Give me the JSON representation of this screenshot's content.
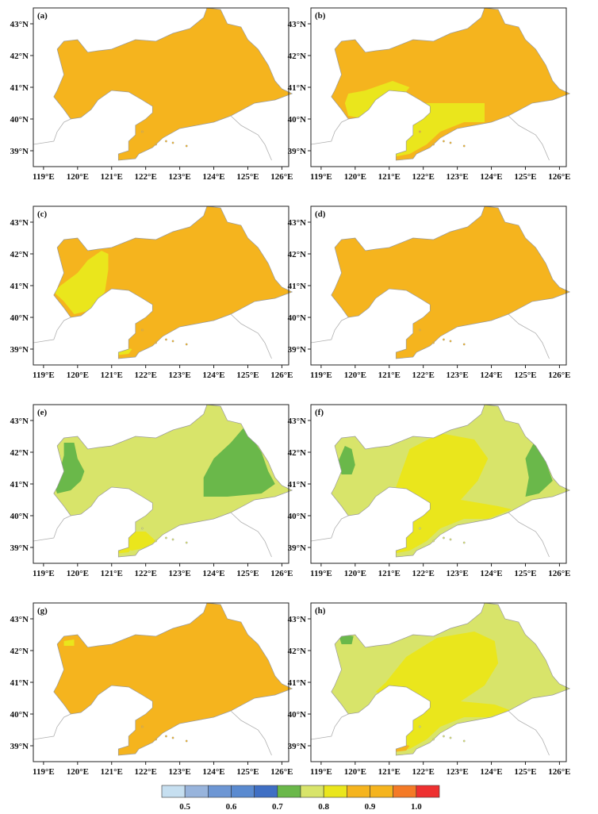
{
  "panels": [
    {
      "id": "a",
      "label": "(a)",
      "base": "#f5b41e",
      "regions": []
    },
    {
      "id": "b",
      "label": "(b)",
      "base": "#f5b41e",
      "regions": [
        {
          "color": "#eae61c",
          "pts": [
            [
              120.3,
              40.9
            ],
            [
              121.1,
              41.2
            ],
            [
              121.6,
              41.0
            ],
            [
              121.3,
              40.6
            ],
            [
              120.8,
              40.4
            ],
            [
              120.3,
              40.0
            ],
            [
              119.8,
              40.1
            ],
            [
              119.7,
              40.5
            ],
            [
              119.8,
              40.8
            ]
          ]
        },
        {
          "color": "#eae61c",
          "pts": [
            [
              121.3,
              40.5
            ],
            [
              122.0,
              40.5
            ],
            [
              123.8,
              40.5
            ],
            [
              123.8,
              39.9
            ],
            [
              123.2,
              39.9
            ],
            [
              122.5,
              39.6
            ],
            [
              122.1,
              39.2
            ],
            [
              121.6,
              38.9
            ],
            [
              121.1,
              38.8
            ],
            [
              121.3,
              39.2
            ],
            [
              121.6,
              39.6
            ],
            [
              121.9,
              40.1
            ],
            [
              121.6,
              40.3
            ]
          ]
        }
      ]
    },
    {
      "id": "c",
      "label": "(c)",
      "base": "#f5b41e",
      "regions": [
        {
          "color": "#eae61c",
          "pts": [
            [
              120.3,
              41.8
            ],
            [
              120.7,
              42.1
            ],
            [
              120.9,
              42.0
            ],
            [
              120.9,
              41.5
            ],
            [
              120.8,
              40.8
            ],
            [
              120.6,
              40.5
            ],
            [
              120.3,
              40.2
            ],
            [
              119.9,
              40.1
            ],
            [
              119.6,
              40.5
            ],
            [
              119.3,
              40.8
            ],
            [
              119.5,
              41.0
            ],
            [
              120.0,
              41.4
            ]
          ]
        },
        {
          "color": "#eae61c",
          "pts": [
            [
              121.1,
              38.8
            ],
            [
              121.5,
              38.85
            ],
            [
              121.6,
              39.0
            ],
            [
              121.2,
              39.1
            ]
          ]
        }
      ]
    },
    {
      "id": "d",
      "label": "(d)",
      "base": "#f5b41e",
      "regions": []
    },
    {
      "id": "e",
      "label": "(e)",
      "base": "#d8e46a",
      "regions": [
        {
          "color": "#6ab84a",
          "pts": [
            [
              119.6,
              42.3
            ],
            [
              119.9,
              42.3
            ],
            [
              120.0,
              41.8
            ],
            [
              120.2,
              41.4
            ],
            [
              120.1,
              41.1
            ],
            [
              119.8,
              40.8
            ],
            [
              119.4,
              40.7
            ],
            [
              119.3,
              41.0
            ],
            [
              119.5,
              41.5
            ],
            [
              119.6,
              41.9
            ]
          ]
        },
        {
          "color": "#6ab84a",
          "pts": [
            [
              124.9,
              42.8
            ],
            [
              125.4,
              42.0
            ],
            [
              125.6,
              41.4
            ],
            [
              125.8,
              41.0
            ],
            [
              125.4,
              40.7
            ],
            [
              124.4,
              40.6
            ],
            [
              123.7,
              40.6
            ],
            [
              123.7,
              41.2
            ],
            [
              124.0,
              41.8
            ],
            [
              124.5,
              42.3
            ]
          ]
        },
        {
          "color": "#eae61c",
          "pts": [
            [
              121.3,
              39.5
            ],
            [
              122.0,
              39.5
            ],
            [
              122.3,
              39.2
            ],
            [
              122.0,
              39.0
            ],
            [
              121.6,
              38.9
            ],
            [
              121.2,
              39.0
            ],
            [
              121.2,
              39.3
            ]
          ]
        },
        {
          "color": "#eae61c",
          "pts": [
            [
              121.1,
              38.8
            ],
            [
              121.5,
              38.85
            ],
            [
              121.6,
              39.0
            ],
            [
              121.2,
              39.1
            ]
          ]
        }
      ]
    },
    {
      "id": "f",
      "label": "(f)",
      "base": "#d8e46a",
      "regions": [
        {
          "color": "#eae61c",
          "pts": [
            [
              121.6,
              42.1
            ],
            [
              122.5,
              42.6
            ],
            [
              123.5,
              42.4
            ],
            [
              123.9,
              41.8
            ],
            [
              123.6,
              41.1
            ],
            [
              123.1,
              40.5
            ],
            [
              124.2,
              40.3
            ],
            [
              124.6,
              40.2
            ],
            [
              123.9,
              39.9
            ],
            [
              123.2,
              39.9
            ],
            [
              122.5,
              39.6
            ],
            [
              122.1,
              39.2
            ],
            [
              121.6,
              38.9
            ],
            [
              121.1,
              38.8
            ],
            [
              121.3,
              39.2
            ],
            [
              121.6,
              39.6
            ],
            [
              121.9,
              40.1
            ],
            [
              121.6,
              40.3
            ],
            [
              121.1,
              40.6
            ],
            [
              121.3,
              41.2
            ]
          ]
        },
        {
          "color": "#6ab84a",
          "pts": [
            [
              119.7,
              42.2
            ],
            [
              119.9,
              42.1
            ],
            [
              120.0,
              41.6
            ],
            [
              119.9,
              41.3
            ],
            [
              119.6,
              41.3
            ],
            [
              119.5,
              41.7
            ]
          ]
        },
        {
          "color": "#6ab84a",
          "pts": [
            [
              125.3,
              42.4
            ],
            [
              125.6,
              41.7
            ],
            [
              125.8,
              41.1
            ],
            [
              125.4,
              40.7
            ],
            [
              125.0,
              40.6
            ],
            [
              125.1,
              41.2
            ],
            [
              125.0,
              41.8
            ]
          ]
        }
      ]
    },
    {
      "id": "g",
      "label": "(g)",
      "base": "#f5b41e",
      "regions": [
        {
          "color": "#eae61c",
          "pts": [
            [
              119.6,
              42.3
            ],
            [
              119.9,
              42.35
            ],
            [
              119.9,
              42.15
            ],
            [
              119.6,
              42.15
            ]
          ]
        }
      ]
    },
    {
      "id": "h",
      "label": "(h)",
      "base": "#d8e46a",
      "regions": [
        {
          "color": "#eae61c",
          "pts": [
            [
              121.5,
              41.8
            ],
            [
              122.4,
              42.4
            ],
            [
              123.5,
              42.6
            ],
            [
              124.1,
              42.3
            ],
            [
              124.2,
              41.6
            ],
            [
              123.8,
              40.9
            ],
            [
              123.1,
              40.4
            ],
            [
              124.1,
              40.3
            ],
            [
              124.6,
              40.1
            ],
            [
              123.9,
              39.9
            ],
            [
              123.2,
              39.9
            ],
            [
              122.5,
              39.6
            ],
            [
              122.1,
              39.2
            ],
            [
              121.6,
              38.9
            ],
            [
              121.1,
              38.8
            ],
            [
              121.3,
              39.2
            ],
            [
              121.6,
              39.6
            ],
            [
              121.9,
              40.1
            ],
            [
              121.6,
              40.3
            ],
            [
              121.0,
              40.5
            ],
            [
              120.6,
              40.7
            ],
            [
              120.9,
              41.0
            ],
            [
              121.2,
              41.4
            ]
          ]
        },
        {
          "color": "#6ab84a",
          "pts": [
            [
              119.5,
              42.55
            ],
            [
              119.95,
              42.45
            ],
            [
              119.9,
              42.2
            ],
            [
              119.6,
              42.2
            ]
          ]
        },
        {
          "color": "#f5b41e",
          "pts": [
            [
              121.1,
              38.8
            ],
            [
              121.5,
              38.85
            ],
            [
              121.6,
              39.0
            ],
            [
              121.2,
              39.1
            ]
          ]
        }
      ]
    }
  ],
  "axes": {
    "lon_min": 118.7,
    "lon_max": 126.2,
    "lat_min": 38.5,
    "lat_max": 43.5,
    "x_ticks": [
      119,
      120,
      121,
      122,
      123,
      124,
      125,
      126
    ],
    "x_tick_labels": [
      "119°E",
      "120°E",
      "121°E",
      "122°E",
      "123°E",
      "124°E",
      "125°E",
      "126°E"
    ],
    "y_ticks": [
      39,
      40,
      41,
      42,
      43
    ],
    "y_tick_labels": [
      "39°N",
      "40°N",
      "41°N",
      "42°N",
      "43°N"
    ]
  },
  "province_outline": [
    [
      119.4,
      40.9
    ],
    [
      119.6,
      41.4
    ],
    [
      119.5,
      41.8
    ],
    [
      119.4,
      42.2
    ],
    [
      119.6,
      42.45
    ],
    [
      120.0,
      42.5
    ],
    [
      120.3,
      42.1
    ],
    [
      120.6,
      42.15
    ],
    [
      121.0,
      42.2
    ],
    [
      121.7,
      42.5
    ],
    [
      122.3,
      42.45
    ],
    [
      122.8,
      42.7
    ],
    [
      123.3,
      42.85
    ],
    [
      123.7,
      43.2
    ],
    [
      123.8,
      43.5
    ],
    [
      124.2,
      43.45
    ],
    [
      124.4,
      43.0
    ],
    [
      124.8,
      42.9
    ],
    [
      125.0,
      42.5
    ],
    [
      125.3,
      42.2
    ],
    [
      125.6,
      41.7
    ],
    [
      125.8,
      41.2
    ],
    [
      126.0,
      40.95
    ],
    [
      126.3,
      40.8
    ],
    [
      125.8,
      40.6
    ],
    [
      125.2,
      40.5
    ],
    [
      124.5,
      40.1
    ],
    [
      124.0,
      39.9
    ],
    [
      123.5,
      39.8
    ],
    [
      123.0,
      39.7
    ],
    [
      122.5,
      39.4
    ],
    [
      122.2,
      39.1
    ],
    [
      121.8,
      38.9
    ],
    [
      121.7,
      38.75
    ],
    [
      121.2,
      38.7
    ],
    [
      121.2,
      38.9
    ],
    [
      121.5,
      39.0
    ],
    [
      121.5,
      39.3
    ],
    [
      121.7,
      39.5
    ],
    [
      121.7,
      39.8
    ],
    [
      122.0,
      40.0
    ],
    [
      122.2,
      40.2
    ],
    [
      122.2,
      40.4
    ],
    [
      121.9,
      40.6
    ],
    [
      121.5,
      40.85
    ],
    [
      121.0,
      40.9
    ],
    [
      120.6,
      40.6
    ],
    [
      120.4,
      40.3
    ],
    [
      120.1,
      40.05
    ],
    [
      119.8,
      40.0
    ],
    [
      119.6,
      40.3
    ],
    [
      119.3,
      40.7
    ]
  ],
  "coastline": [
    [
      118.7,
      39.2
    ],
    [
      119.0,
      39.25
    ],
    [
      119.3,
      39.3
    ],
    [
      119.4,
      39.6
    ],
    [
      119.6,
      39.9
    ],
    [
      119.8,
      40.0
    ]
  ],
  "coastline_east": [
    [
      124.5,
      40.1
    ],
    [
      124.8,
      39.8
    ],
    [
      125.3,
      39.5
    ],
    [
      125.5,
      39.2
    ],
    [
      125.7,
      38.7
    ]
  ],
  "islands": [
    [
      122.6,
      39.3
    ],
    [
      122.8,
      39.25
    ],
    [
      123.2,
      39.15
    ],
    [
      122.3,
      39.2
    ],
    [
      121.9,
      39.6
    ]
  ],
  "colorbar": {
    "colors": [
      "#c6dff0",
      "#98b4dc",
      "#6d96d4",
      "#5a8ad0",
      "#3f6fc4",
      "#6ab84a",
      "#d8e46a",
      "#eae61c",
      "#f5b41e",
      "#f5b41e",
      "#f47a26",
      "#ee3030"
    ],
    "tick_values": [
      "0.5",
      "0.6",
      "0.7",
      "0.8",
      "0.9",
      "1.0"
    ]
  }
}
